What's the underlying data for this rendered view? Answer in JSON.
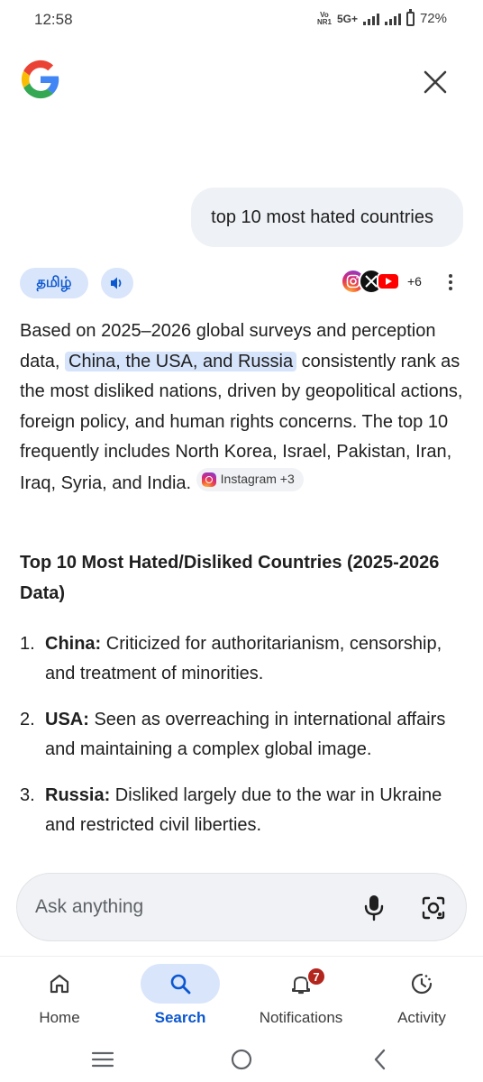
{
  "status_bar": {
    "time": "12:58",
    "volte_top": "Vo",
    "volte_bottom": "NR1",
    "network": "5G+",
    "battery_percent": "72%"
  },
  "header": {
    "logo_icon": "google-g-logo",
    "close_icon": "close-icon"
  },
  "query": {
    "text": "top 10 most hated countries"
  },
  "toolbar": {
    "language_label": "தமிழ்",
    "speak_icon": "speaker-icon",
    "sources_extra": "+6",
    "source_icons": [
      "instagram-icon",
      "x-icon",
      "youtube-icon"
    ]
  },
  "answer": {
    "text_before": "Based on 2025–2026 global surveys and perception data, ",
    "highlight": "China, the USA, and Russia",
    "text_after": " consistently rank as the most disliked nations, driven by geopolitical actions, foreign policy, and human rights concerns. The top 10 frequently includes North Korea, Israel, Pakistan, Iran, Iraq, Syria, and India.",
    "citation_label": "Instagram +3"
  },
  "section": {
    "heading": "Top 10 Most Hated/Disliked Countries (2025-2026 Data)"
  },
  "list": {
    "items": [
      {
        "num": "1.",
        "title": "China:",
        "text": " Criticized for authoritarianism, censorship, and treatment of minorities."
      },
      {
        "num": "2.",
        "title": "USA:",
        "text": " Seen as overreaching in international affairs and maintaining a complex global image."
      },
      {
        "num": "3.",
        "title": "Russia:",
        "text": " Disliked largely due to the war in Ukraine and restricted civil liberties."
      }
    ]
  },
  "ask_bar": {
    "placeholder": "Ask anything",
    "mic_icon": "mic-icon",
    "lens_icon": "lens-camera-icon"
  },
  "bottom_nav": {
    "items": [
      {
        "label": "Home",
        "icon": "home-icon",
        "active": false
      },
      {
        "label": "Search",
        "icon": "search-icon",
        "active": true
      },
      {
        "label": "Notifications",
        "icon": "bell-icon",
        "active": false,
        "badge": "7"
      },
      {
        "label": "Activity",
        "icon": "activity-icon",
        "active": false
      }
    ]
  },
  "colors": {
    "accent": "#0b57d0",
    "chip_bg": "#d9e5fb",
    "badge": "#b3261e"
  }
}
